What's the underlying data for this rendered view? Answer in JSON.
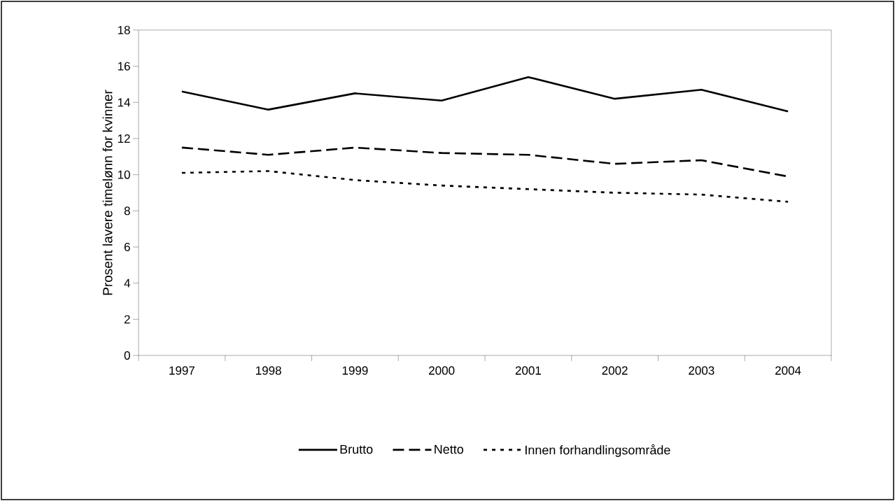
{
  "chart_data": {
    "type": "line",
    "ylabel": "Prosent lavere timelønn for kvinner",
    "categories": [
      "1997",
      "1998",
      "1999",
      "2000",
      "2001",
      "2002",
      "2003",
      "2004"
    ],
    "series": [
      {
        "name": "Brutto",
        "color": "#000000",
        "line_style": "solid",
        "values": [
          14.6,
          13.6,
          14.5,
          14.1,
          15.4,
          14.2,
          14.7,
          13.5
        ]
      },
      {
        "name": "Netto",
        "color": "#000000",
        "line_style": "dashed",
        "values": [
          11.5,
          11.1,
          11.5,
          11.2,
          11.1,
          10.6,
          10.8,
          9.9
        ]
      },
      {
        "name": "Innen forhandlingsområde",
        "color": "#000000",
        "line_style": "dotted",
        "values": [
          10.1,
          10.2,
          9.7,
          9.4,
          9.2,
          9.0,
          8.9,
          8.5
        ]
      }
    ],
    "ylim": [
      0,
      18
    ],
    "yticks": [
      0,
      2,
      4,
      6,
      8,
      10,
      12,
      14,
      16,
      18
    ],
    "grid": false,
    "legend": "bottom",
    "marker": "none"
  }
}
